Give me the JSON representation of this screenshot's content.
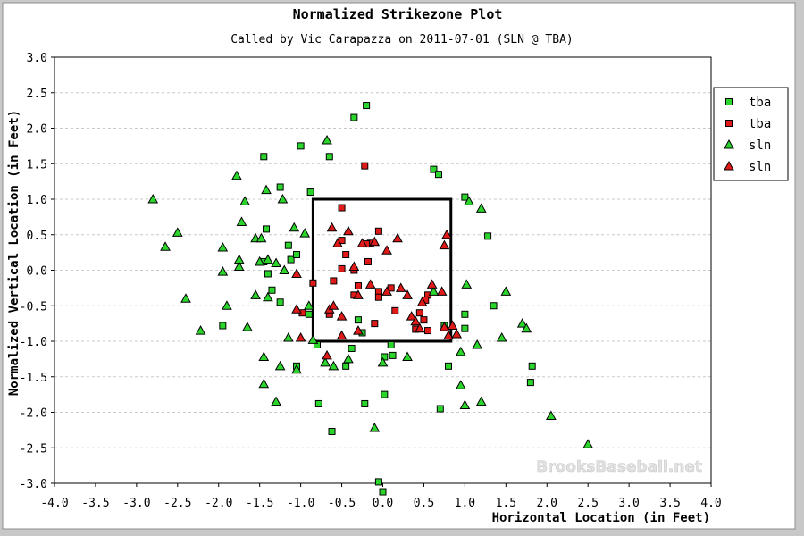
{
  "chart_data": {
    "type": "scatter",
    "title": "Normalized Strikezone Plot",
    "subtitle": "Called by Vic Carapazza on 2011-07-01 (SLN @ TBA)",
    "xlabel": "Horizontal Location (in Feet)",
    "ylabel": "Normalized Vertical Location (in Feet)",
    "xlim": [
      -4.0,
      4.0
    ],
    "ylim": [
      -3.0,
      3.0
    ],
    "x_ticks": [
      "-4.0",
      "-3.5",
      "-3.0",
      "-2.5",
      "-2.0",
      "-1.5",
      "-1.0",
      "-0.5",
      "0.0",
      "0.5",
      "1.0",
      "1.5",
      "2.0",
      "2.5",
      "3.0",
      "3.5",
      "4.0"
    ],
    "y_ticks": [
      "3.0",
      "2.5",
      "2.0",
      "1.5",
      "1.0",
      "0.5",
      "0.0",
      "-0.5",
      "-1.0",
      "-1.5",
      "-2.0",
      "-2.5",
      "-3.0"
    ],
    "grid": true,
    "legend_position": "top-right",
    "strike_zone": {
      "x": [
        -0.85,
        0.83
      ],
      "y": [
        -1.0,
        1.0
      ]
    },
    "watermark": "BrooksBaseball.net",
    "series": [
      {
        "name": "tba",
        "marker": "square",
        "color": "#2bd52b",
        "points": [
          [
            -0.2,
            2.32
          ],
          [
            -0.35,
            2.15
          ],
          [
            -1.0,
            1.75
          ],
          [
            -0.65,
            1.6
          ],
          [
            -1.45,
            1.6
          ],
          [
            0.62,
            1.42
          ],
          [
            0.68,
            1.35
          ],
          [
            -1.25,
            1.17
          ],
          [
            -0.88,
            1.1
          ],
          [
            1.0,
            1.03
          ],
          [
            -1.42,
            0.58
          ],
          [
            -1.15,
            0.35
          ],
          [
            -1.12,
            0.15
          ],
          [
            -1.05,
            0.22
          ],
          [
            -1.45,
            0.12
          ],
          [
            1.28,
            0.48
          ],
          [
            -1.35,
            -0.28
          ],
          [
            -0.9,
            -0.62
          ],
          [
            1.35,
            -0.5
          ],
          [
            -1.25,
            -0.45
          ],
          [
            -1.4,
            -0.05
          ],
          [
            1.0,
            -0.62
          ],
          [
            -1.95,
            -0.78
          ],
          [
            -0.3,
            -0.7
          ],
          [
            -0.25,
            -0.88
          ],
          [
            0.75,
            -0.78
          ],
          [
            1.0,
            -0.82
          ],
          [
            -1.05,
            -1.35
          ],
          [
            -0.8,
            -1.05
          ],
          [
            -0.38,
            -1.1
          ],
          [
            0.1,
            -1.05
          ],
          [
            0.02,
            -1.22
          ],
          [
            0.12,
            -1.2
          ],
          [
            -0.45,
            -1.35
          ],
          [
            0.8,
            -1.35
          ],
          [
            1.82,
            -1.35
          ],
          [
            1.8,
            -1.58
          ],
          [
            0.02,
            -1.75
          ],
          [
            -0.78,
            -1.88
          ],
          [
            -0.22,
            -1.88
          ],
          [
            0.7,
            -1.95
          ],
          [
            -0.62,
            -2.27
          ],
          [
            -0.05,
            -2.98
          ],
          [
            0.0,
            -3.12
          ]
        ]
      },
      {
        "name": "tba",
        "marker": "square",
        "color": "#e01919",
        "points": [
          [
            -0.22,
            1.47
          ],
          [
            -0.5,
            0.88
          ],
          [
            -0.05,
            0.55
          ],
          [
            -0.5,
            0.42
          ],
          [
            -0.15,
            0.38
          ],
          [
            -0.2,
            0.37
          ],
          [
            -0.45,
            0.22
          ],
          [
            -0.18,
            0.12
          ],
          [
            -0.5,
            0.02
          ],
          [
            -0.35,
            0.0
          ],
          [
            -0.6,
            -0.15
          ],
          [
            -0.3,
            -0.22
          ],
          [
            0.1,
            -0.25
          ],
          [
            -0.05,
            -0.3
          ],
          [
            -0.35,
            -0.35
          ],
          [
            -0.05,
            -0.38
          ],
          [
            0.55,
            -0.35
          ],
          [
            0.52,
            -0.42
          ],
          [
            -0.85,
            -0.18
          ],
          [
            0.15,
            -0.57
          ],
          [
            0.45,
            -0.6
          ],
          [
            0.5,
            -0.7
          ],
          [
            -0.1,
            -0.75
          ],
          [
            0.4,
            -0.83
          ],
          [
            -0.65,
            -0.62
          ],
          [
            0.55,
            -0.85
          ],
          [
            -0.98,
            -0.6
          ]
        ]
      },
      {
        "name": "sln",
        "marker": "triangle",
        "color": "#2bd52b",
        "points": [
          [
            -0.68,
            1.83
          ],
          [
            -1.78,
            1.33
          ],
          [
            -2.8,
            1.0
          ],
          [
            -1.68,
            0.97
          ],
          [
            -1.42,
            1.13
          ],
          [
            -1.22,
            1.0
          ],
          [
            -1.72,
            0.68
          ],
          [
            -2.5,
            0.53
          ],
          [
            -2.65,
            0.33
          ],
          [
            -1.95,
            0.32
          ],
          [
            -1.55,
            0.45
          ],
          [
            -1.48,
            0.45
          ],
          [
            -1.75,
            0.15
          ],
          [
            -1.75,
            0.05
          ],
          [
            -1.95,
            -0.02
          ],
          [
            -1.5,
            0.12
          ],
          [
            -1.4,
            0.15
          ],
          [
            -1.3,
            0.1
          ],
          [
            -1.2,
            0.0
          ],
          [
            -1.08,
            0.6
          ],
          [
            -0.95,
            0.52
          ],
          [
            1.05,
            0.97
          ],
          [
            1.2,
            0.87
          ],
          [
            1.02,
            -0.2
          ],
          [
            1.5,
            -0.3
          ],
          [
            -1.55,
            -0.35
          ],
          [
            -1.4,
            -0.38
          ],
          [
            -2.4,
            -0.4
          ],
          [
            -1.9,
            -0.5
          ],
          [
            -0.9,
            -0.5
          ],
          [
            -2.22,
            -0.85
          ],
          [
            -1.65,
            -0.8
          ],
          [
            -1.15,
            -0.95
          ],
          [
            -0.85,
            -0.98
          ],
          [
            1.7,
            -0.75
          ],
          [
            1.75,
            -0.82
          ],
          [
            1.45,
            -0.95
          ],
          [
            1.15,
            -1.05
          ],
          [
            0.95,
            -1.15
          ],
          [
            -1.45,
            -1.22
          ],
          [
            -1.25,
            -1.35
          ],
          [
            -1.05,
            -1.4
          ],
          [
            -0.7,
            -1.3
          ],
          [
            -0.6,
            -1.35
          ],
          [
            -0.42,
            -1.25
          ],
          [
            0.3,
            -1.22
          ],
          [
            -1.45,
            -1.6
          ],
          [
            -1.3,
            -1.85
          ],
          [
            0.95,
            -1.62
          ],
          [
            1.0,
            -1.9
          ],
          [
            1.2,
            -1.85
          ],
          [
            2.05,
            -2.05
          ],
          [
            -0.1,
            -2.22
          ],
          [
            2.5,
            -2.45
          ],
          [
            0.62,
            -0.3
          ],
          [
            0.0,
            -1.3
          ]
        ]
      },
      {
        "name": "sln",
        "marker": "triangle",
        "color": "#e01919",
        "points": [
          [
            -0.62,
            0.6
          ],
          [
            -0.42,
            0.55
          ],
          [
            0.18,
            0.45
          ],
          [
            -0.1,
            0.4
          ],
          [
            -0.25,
            0.38
          ],
          [
            0.78,
            0.5
          ],
          [
            -0.55,
            0.38
          ],
          [
            0.75,
            0.35
          ],
          [
            -0.35,
            0.05
          ],
          [
            0.05,
            0.28
          ],
          [
            -1.05,
            -0.05
          ],
          [
            -0.15,
            -0.2
          ],
          [
            0.22,
            -0.25
          ],
          [
            0.6,
            -0.2
          ],
          [
            0.72,
            -0.3
          ],
          [
            -0.65,
            -0.55
          ],
          [
            -0.3,
            -0.35
          ],
          [
            0.48,
            -0.45
          ],
          [
            0.05,
            -0.3
          ],
          [
            0.3,
            -0.35
          ],
          [
            -0.6,
            -0.5
          ],
          [
            -1.05,
            -0.55
          ],
          [
            -0.5,
            -0.65
          ],
          [
            0.35,
            -0.65
          ],
          [
            0.4,
            -0.72
          ],
          [
            0.75,
            -0.8
          ],
          [
            -0.3,
            -0.85
          ],
          [
            -1.0,
            -0.95
          ],
          [
            -0.5,
            -0.92
          ],
          [
            0.8,
            -0.92
          ],
          [
            0.9,
            -0.9
          ],
          [
            -0.68,
            -1.2
          ],
          [
            0.85,
            -0.78
          ],
          [
            0.45,
            -0.82
          ]
        ]
      }
    ]
  }
}
